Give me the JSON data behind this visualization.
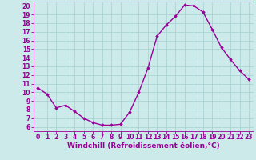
{
  "hours": [
    0,
    1,
    2,
    3,
    4,
    5,
    6,
    7,
    8,
    9,
    10,
    11,
    12,
    13,
    14,
    15,
    16,
    17,
    18,
    19,
    20,
    21,
    22,
    23
  ],
  "values": [
    10.5,
    9.8,
    8.2,
    8.5,
    7.8,
    7.0,
    6.5,
    6.2,
    6.2,
    6.3,
    7.7,
    10.0,
    12.8,
    16.5,
    17.8,
    18.8,
    20.1,
    20.0,
    19.3,
    17.3,
    15.2,
    13.8,
    12.5,
    11.5
  ],
  "line_color": "#990099",
  "marker": "D",
  "marker_size": 1.8,
  "bg_color": "#cceaea",
  "grid_color": "#aad4d4",
  "axis_color": "#990099",
  "tick_color": "#990099",
  "xlabel": "Windchill (Refroidissement éolien,°C)",
  "xlim": [
    -0.5,
    23.5
  ],
  "ylim": [
    5.5,
    20.5
  ],
  "yticks": [
    6,
    7,
    8,
    9,
    10,
    11,
    12,
    13,
    14,
    15,
    16,
    17,
    18,
    19,
    20
  ],
  "xticks": [
    0,
    1,
    2,
    3,
    4,
    5,
    6,
    7,
    8,
    9,
    10,
    11,
    12,
    13,
    14,
    15,
    16,
    17,
    18,
    19,
    20,
    21,
    22,
    23
  ],
  "font_size_label": 6.5,
  "font_size_tick": 5.5,
  "line_width": 1.0
}
